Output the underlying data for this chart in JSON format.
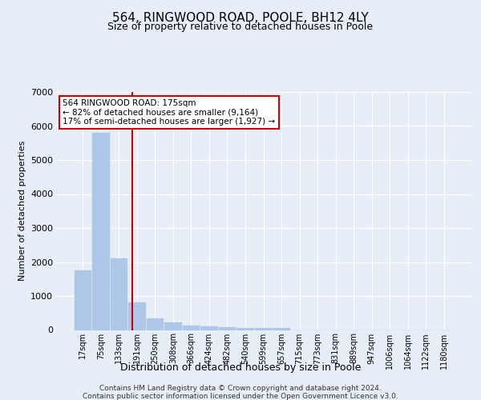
{
  "title": "564, RINGWOOD ROAD, POOLE, BH12 4LY",
  "subtitle": "Size of property relative to detached houses in Poole",
  "xlabel": "Distribution of detached houses by size in Poole",
  "ylabel": "Number of detached properties",
  "footer_line1": "Contains HM Land Registry data © Crown copyright and database right 2024.",
  "footer_line2": "Contains public sector information licensed under the Open Government Licence v3.0.",
  "bins": [
    "17sqm",
    "75sqm",
    "133sqm",
    "191sqm",
    "250sqm",
    "308sqm",
    "366sqm",
    "424sqm",
    "482sqm",
    "540sqm",
    "599sqm",
    "657sqm",
    "715sqm",
    "773sqm",
    "831sqm",
    "889sqm",
    "947sqm",
    "1006sqm",
    "1064sqm",
    "1122sqm",
    "1180sqm"
  ],
  "values": [
    1750,
    5800,
    2100,
    820,
    350,
    220,
    120,
    95,
    75,
    55,
    70,
    50,
    0,
    0,
    0,
    0,
    0,
    0,
    0,
    0,
    0
  ],
  "bar_color": "#aec6e8",
  "bar_edgecolor": "#aec6e8",
  "vline_color": "#cc0000",
  "annotation_text": "564 RINGWOOD ROAD: 175sqm\n← 82% of detached houses are smaller (9,164)\n17% of semi-detached houses are larger (1,927) →",
  "annotation_box_facecolor": "#ffffff",
  "annotation_box_edgecolor": "#cc0000",
  "ylim": [
    0,
    7000
  ],
  "yticks": [
    0,
    1000,
    2000,
    3000,
    4000,
    5000,
    6000,
    7000
  ],
  "background_color": "#e8eef7",
  "axes_facecolor": "#e8eef7",
  "grid_color": "#ffffff",
  "title_fontsize": 11,
  "subtitle_fontsize": 9,
  "vline_pos": 2.72
}
